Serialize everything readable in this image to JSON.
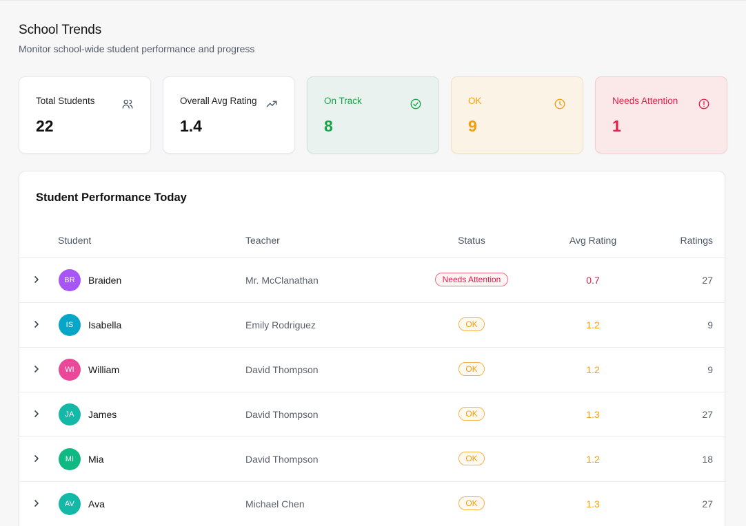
{
  "header": {
    "title": "School Trends",
    "subtitle": "Monitor school-wide student performance and progress"
  },
  "cards": [
    {
      "label": "Total Students",
      "value": "22",
      "icon": "users-icon"
    },
    {
      "label": "Overall Avg Rating",
      "value": "1.4",
      "icon": "trending-up-icon"
    },
    {
      "label": "On Track",
      "value": "8",
      "icon": "check-circle-icon",
      "color": "#16a34a"
    },
    {
      "label": "OK",
      "value": "9",
      "icon": "clock-icon",
      "color": "#f59e0b"
    },
    {
      "label": "Needs Attention",
      "value": "1",
      "icon": "alert-circle-icon",
      "color": "#e11d48"
    }
  ],
  "table": {
    "title": "Student Performance Today",
    "columns": [
      "Student",
      "Teacher",
      "Status",
      "Avg Rating",
      "Ratings"
    ],
    "rows": [
      {
        "initials": "BR",
        "name": "Braiden",
        "teacher": "Mr. McClanathan",
        "status": "Needs Attention",
        "avg": "0.7",
        "ratings": "27",
        "avatar_color": "#a855f7"
      },
      {
        "initials": "IS",
        "name": "Isabella",
        "teacher": "Emily Rodriguez",
        "status": "OK",
        "avg": "1.2",
        "ratings": "9",
        "avatar_color": "#06a6c9"
      },
      {
        "initials": "WI",
        "name": "William",
        "teacher": "David Thompson",
        "status": "OK",
        "avg": "1.2",
        "ratings": "9",
        "avatar_color": "#ec4899"
      },
      {
        "initials": "JA",
        "name": "James",
        "teacher": "David Thompson",
        "status": "OK",
        "avg": "1.3",
        "ratings": "27",
        "avatar_color": "#14b8a6"
      },
      {
        "initials": "MI",
        "name": "Mia",
        "teacher": "David Thompson",
        "status": "OK",
        "avg": "1.2",
        "ratings": "18",
        "avatar_color": "#10b981"
      },
      {
        "initials": "AV",
        "name": "Ava",
        "teacher": "Michael Chen",
        "status": "OK",
        "avg": "1.3",
        "ratings": "27",
        "avatar_color": "#14b8a6"
      }
    ]
  }
}
